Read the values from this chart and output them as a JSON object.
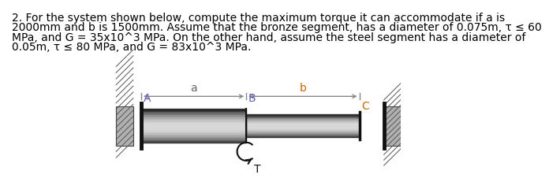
{
  "title_lines": [
    "2. For the system shown below, compute the maximum torque it can accommodate if a is",
    "2000mm and b is 1500mm. Assume that the bronze segment, has a diameter of 0.075m, τ ≤ 60",
    "MPa, and G = 35x10^3 MPa. On the other hand, assume the steel segment has a diameter of",
    "0.05m, τ ≤ 80 MPa, and G = 83x10^3 MPa."
  ],
  "title_fontsize": 10.0,
  "bg_color": "#ffffff",
  "label_color_blue": "#6060c0",
  "label_color_orange": "#cc6600",
  "label_color_dark": "#222222",
  "label_A": "A",
  "label_B": "B",
  "label_C": "C",
  "label_T": "T",
  "label_a": "a",
  "label_b": "b",
  "wall_hatch_color": "#888888",
  "shaft_colors": [
    "#111111",
    "#555555",
    "#999999",
    "#cccccc",
    "#e8e8e8",
    "#cccccc",
    "#999999",
    "#555555",
    "#111111"
  ],
  "dim_arrow_color": "#888888",
  "torque_arrow_color": "#111111"
}
